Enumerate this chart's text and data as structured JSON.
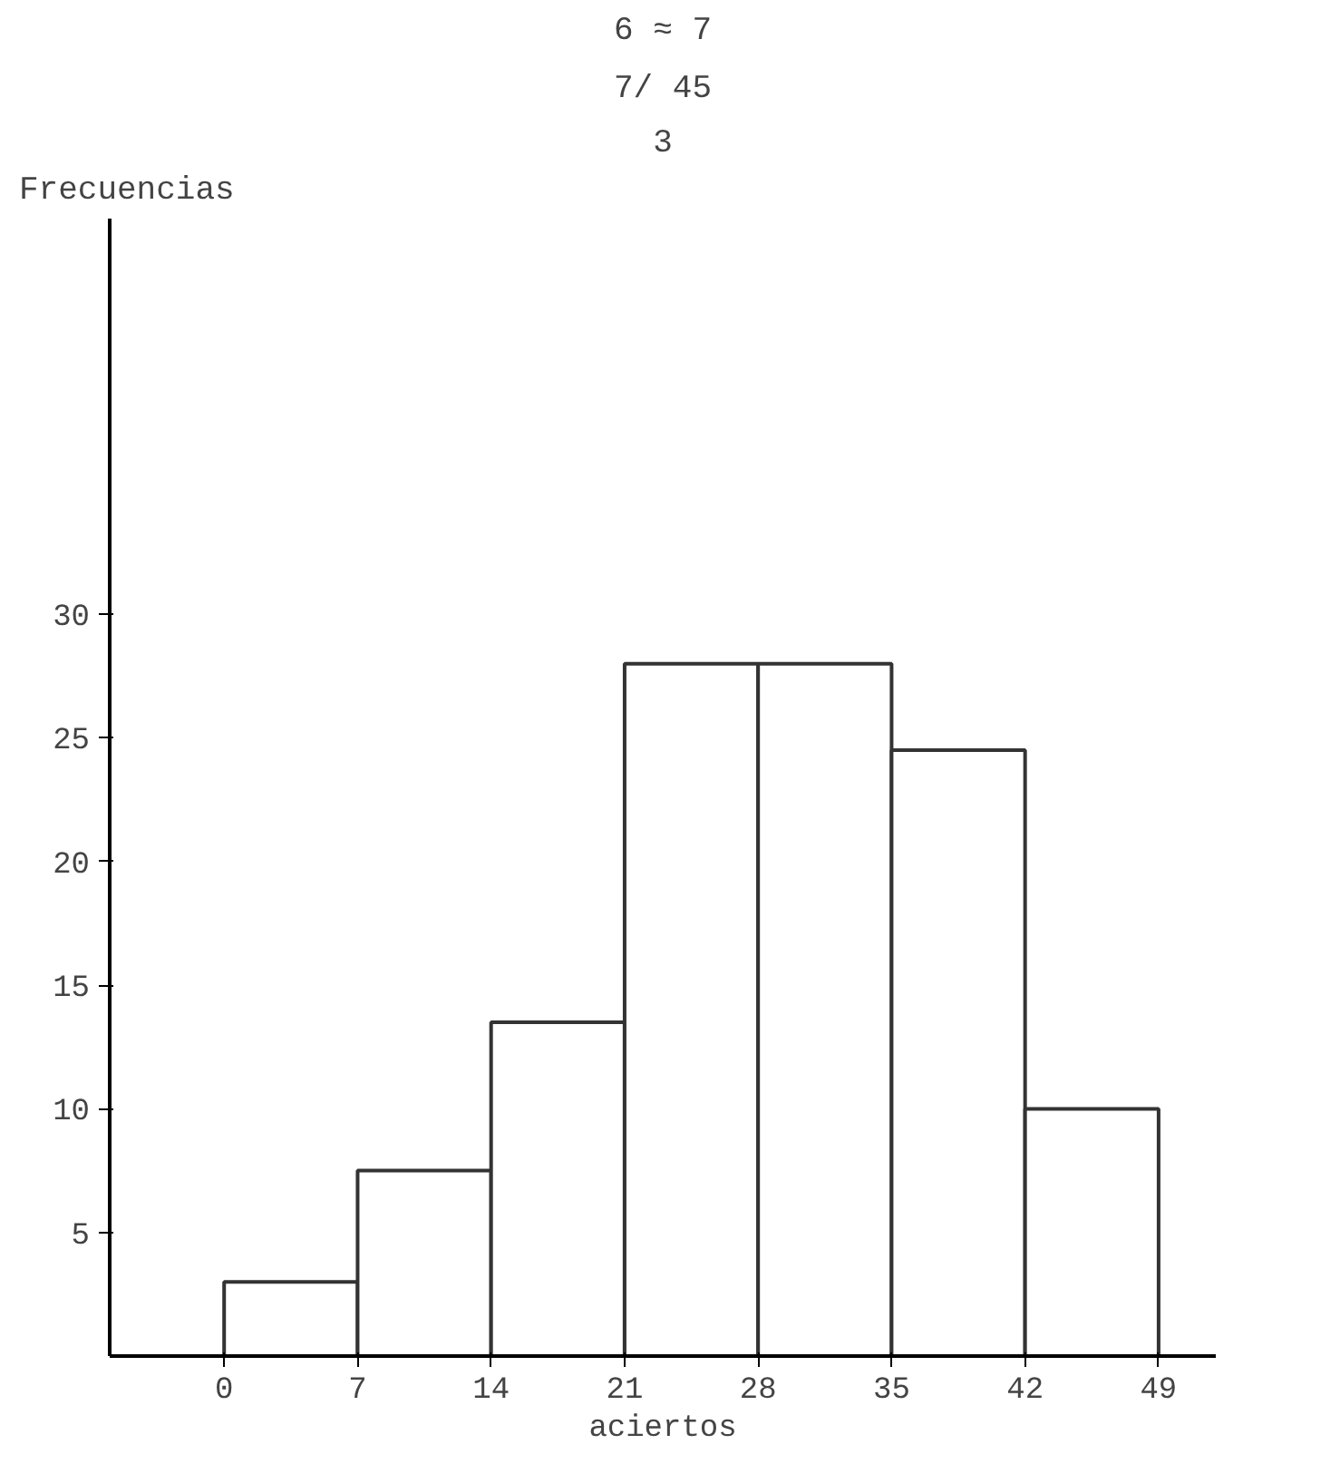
{
  "chart_data": {
    "type": "histogram",
    "ylabel": "Frecuencias",
    "xlabel": "aciertos",
    "annotations": [
      "6 ≈ 7",
      "7/ 45",
      "3"
    ],
    "bins": [
      0,
      7,
      14,
      21,
      28,
      35,
      42,
      49
    ],
    "values": [
      3,
      7.5,
      13.5,
      28,
      28,
      24.5,
      10
    ],
    "color": "#ffffff",
    "xlim": [
      -6,
      52
    ],
    "ylim": [
      0,
      46
    ],
    "xticks": [
      0,
      7,
      14,
      21,
      28,
      35,
      42,
      49
    ],
    "yticks": [
      5,
      10,
      15,
      20,
      25,
      30
    ],
    "grid": false
  }
}
